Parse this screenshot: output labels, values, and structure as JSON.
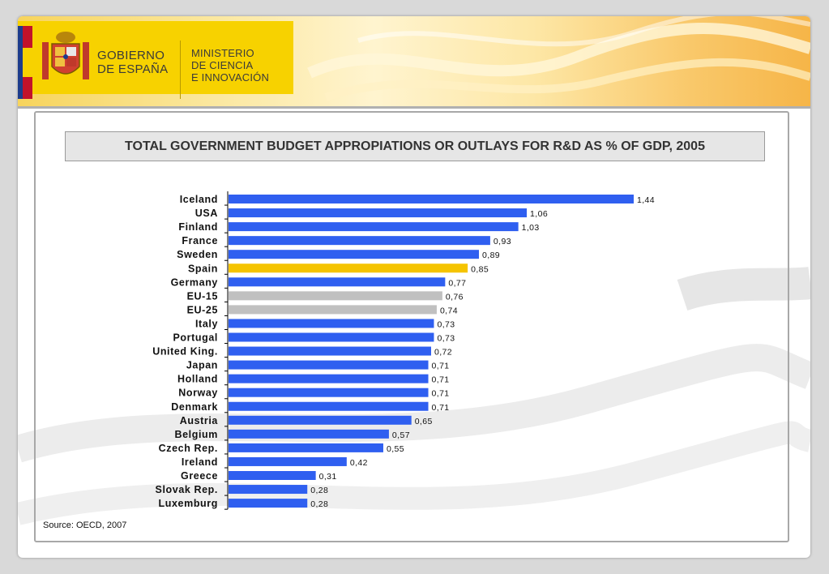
{
  "header": {
    "gov_line1": "GOBIERNO",
    "gov_line2": "DE ESPAÑA",
    "ministry_line1": "MINISTERIO",
    "ministry_line2": "DE CIENCIA",
    "ministry_line3": "E  INNOVACIÓN"
  },
  "source": "Source: OECD, 2007",
  "colors": {
    "bar_default": "#2f5ff0",
    "bar_highlight": "#f5c400",
    "bar_aggregate": "#c0c0c0"
  },
  "chart_data": {
    "type": "bar",
    "orientation": "horizontal",
    "title": "TOTAL GOVERNMENT BUDGET APPROPIATIONS OR OUTLAYS FOR R&D AS % OF GDP, 2005",
    "xlabel": "",
    "ylabel": "",
    "xlim": [
      0,
      1.44
    ],
    "grid": false,
    "categories": [
      "Iceland",
      "USA",
      "Finland",
      "France",
      "Sweden",
      "Spain",
      "Germany",
      "EU-15",
      "EU-25",
      "Italy",
      "Portugal",
      "United King.",
      "Japan",
      "Holland",
      "Norway",
      "Denmark",
      "Austria",
      "Belgium",
      "Czech Rep.",
      "Ireland",
      "Greece",
      "Slovak Rep.",
      "Luxemburg"
    ],
    "values": [
      1.44,
      1.06,
      1.03,
      0.93,
      0.89,
      0.85,
      0.77,
      0.76,
      0.74,
      0.73,
      0.73,
      0.72,
      0.71,
      0.71,
      0.71,
      0.71,
      0.65,
      0.57,
      0.55,
      0.42,
      0.31,
      0.28,
      0.28
    ],
    "value_labels": [
      "1,44",
      "1,06",
      "1,03",
      "0,93",
      "0,89",
      "0,85",
      "0,77",
      "0,76",
      "0,74",
      "0,73",
      "0,73",
      "0,72",
      "0,71",
      "0,71",
      "0,71",
      "0,71",
      "0,65",
      "0,57",
      "0,55",
      "0,42",
      "0,31",
      "0,28",
      "0,28"
    ],
    "bar_colors": [
      "blue",
      "blue",
      "blue",
      "blue",
      "blue",
      "yellow",
      "blue",
      "grey",
      "grey",
      "blue",
      "blue",
      "blue",
      "blue",
      "blue",
      "blue",
      "blue",
      "blue",
      "blue",
      "blue",
      "blue",
      "blue",
      "blue",
      "blue"
    ]
  }
}
